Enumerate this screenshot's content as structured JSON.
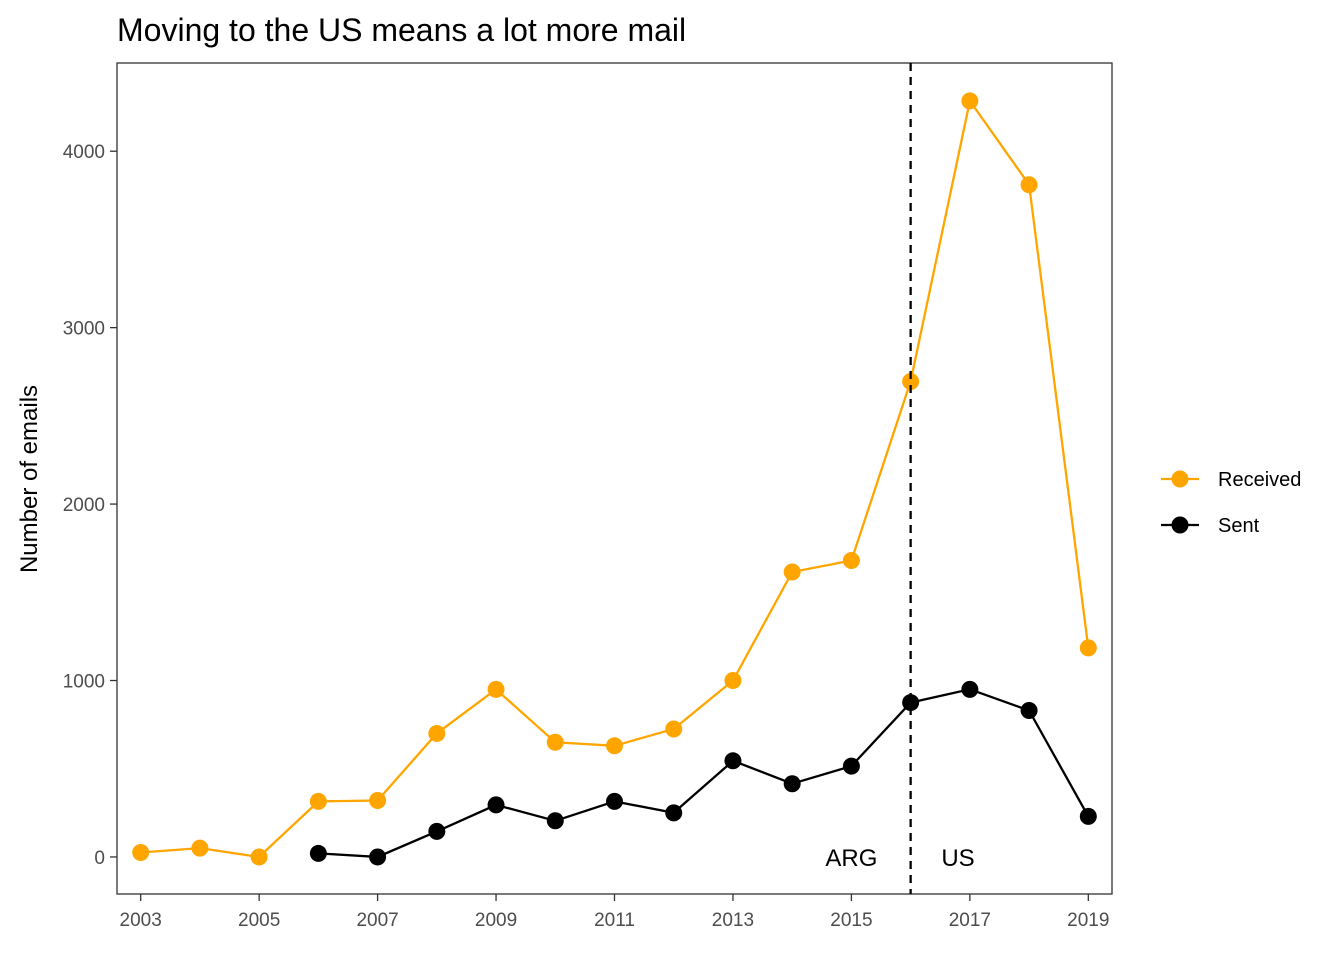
{
  "chart_data": {
    "type": "line",
    "title": "Moving to the US means a lot more mail",
    "xlabel": "",
    "ylabel": "Number of emails",
    "xlim": [
      2002.6,
      2019.4
    ],
    "ylim": [
      -210,
      4500
    ],
    "x_ticks": [
      2003,
      2005,
      2007,
      2009,
      2011,
      2013,
      2015,
      2017,
      2019
    ],
    "y_ticks": [
      0,
      1000,
      2000,
      3000,
      4000
    ],
    "grid": false,
    "legend_position": "right",
    "vline": {
      "x": 2016,
      "style": "dashed",
      "color": "#000000"
    },
    "annotations": [
      {
        "text": "ARG",
        "x": 2015.0,
        "y": 0
      },
      {
        "text": "US",
        "x": 2016.8,
        "y": 0
      }
    ],
    "series": [
      {
        "name": "Received",
        "color": "#FFA500",
        "x": [
          2003,
          2004,
          2005,
          2006,
          2007,
          2008,
          2009,
          2010,
          2011,
          2012,
          2013,
          2014,
          2015,
          2016,
          2017,
          2018,
          2019
        ],
        "y": [
          25,
          50,
          0,
          315,
          320,
          700,
          950,
          650,
          630,
          725,
          1000,
          1615,
          1680,
          2695,
          4285,
          3810,
          1185
        ]
      },
      {
        "name": "Sent",
        "color": "#000000",
        "x": [
          2006,
          2007,
          2008,
          2009,
          2010,
          2011,
          2012,
          2013,
          2014,
          2015,
          2016,
          2017,
          2018,
          2019
        ],
        "y": [
          20,
          0,
          145,
          295,
          205,
          315,
          250,
          545,
          415,
          515,
          875,
          950,
          830,
          230
        ]
      }
    ]
  }
}
